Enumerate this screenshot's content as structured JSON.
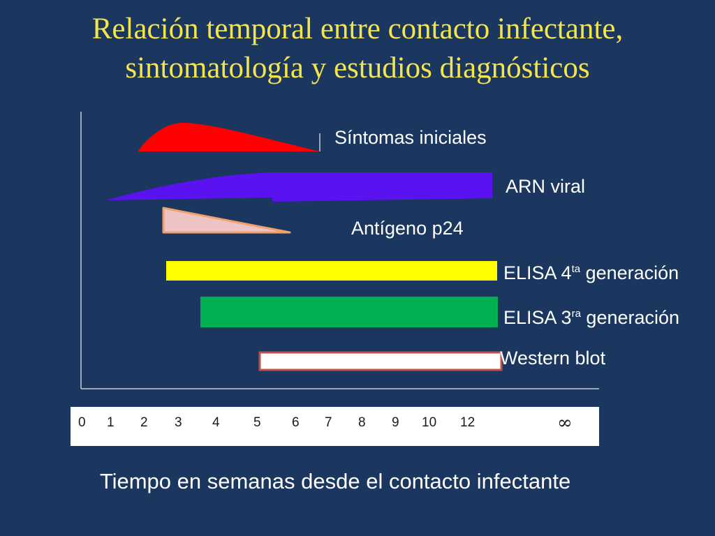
{
  "title_line1": "Relación temporal entre contacto infectante,",
  "title_line2": "sintomatología y estudios diagnósticos",
  "labels": {
    "sintomas": "Síntomas iniciales",
    "arn": "ARN viral",
    "antigeno": "Antígeno p24",
    "elisa4_base": "ELISA 4",
    "elisa4_sup": "ta",
    "elisa4_rest": " generación",
    "elisa3_base": "ELISA 3",
    "elisa3_sup": "ra",
    "elisa3_rest": " generación",
    "western": "Western blot"
  },
  "xaxis_title": "Tiempo en semanas desde el contacto infectante",
  "ticks": [
    "0",
    "1",
    "2",
    "3",
    "4",
    "5",
    "6",
    "7",
    "8",
    "9",
    "10",
    "12"
  ],
  "infinity": "∞",
  "colors": {
    "sintomas": "#ff0000",
    "arn": "#5a12f0",
    "antigeno": "#eec3c3",
    "elisa4": "#ffff00",
    "elisa3": "#00b050",
    "western": "#ffffff",
    "western_border": "#c0504d"
  },
  "chart_data": {
    "type": "bar",
    "title": "Relación temporal entre contacto infectante, sintomatología y estudios diagnósticos",
    "xlabel": "Tiempo en semanas desde el contacto infectante",
    "x_ticks": [
      "0",
      "1",
      "2",
      "3",
      "4",
      "5",
      "6",
      "7",
      "8",
      "9",
      "10",
      "12",
      "∞"
    ],
    "series": [
      {
        "name": "Síntomas iniciales",
        "start": 1.8,
        "end": 6.6,
        "shape": "peak"
      },
      {
        "name": "ARN viral",
        "start": 0.8,
        "end": "∞",
        "shape": "ramp"
      },
      {
        "name": "Antígeno p24",
        "start": 2.6,
        "end": 5.8,
        "shape": "decline"
      },
      {
        "name": "ELISA 4ta generación",
        "start": 2.6,
        "end": "∞",
        "shape": "bar"
      },
      {
        "name": "ELISA 3ra generación",
        "start": 3.5,
        "end": "∞",
        "shape": "bar"
      },
      {
        "name": "Western blot",
        "start": 5.0,
        "end": "∞",
        "shape": "bar"
      }
    ]
  }
}
